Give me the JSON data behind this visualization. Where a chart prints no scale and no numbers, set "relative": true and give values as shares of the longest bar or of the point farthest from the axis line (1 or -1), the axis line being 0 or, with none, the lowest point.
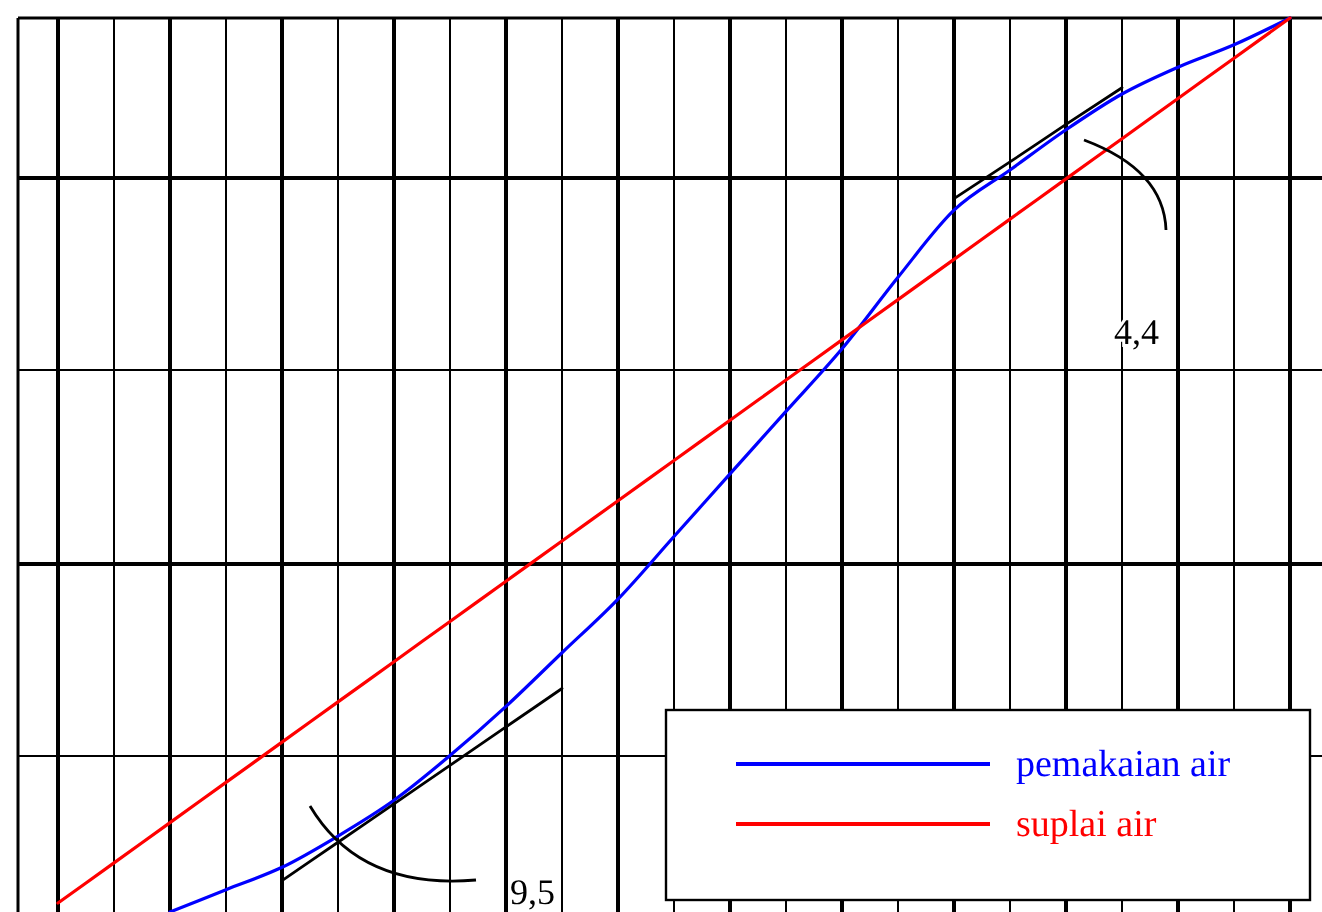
{
  "chart_data": {
    "type": "line",
    "relative": true,
    "categories": [
      null,
      null,
      null,
      null,
      null,
      null,
      null,
      null,
      null,
      null,
      null,
      null,
      null,
      null,
      null,
      null,
      null,
      null,
      null,
      null,
      null,
      null,
      null
    ],
    "series": [
      {
        "name": "pemakaian air",
        "color": "#0000ff",
        "values": [
          null,
          null,
          0,
          0.025,
          0.05,
          0.085,
          0.125,
          0.175,
          0.23,
          0.29,
          0.35,
          0.42,
          0.49,
          0.56,
          0.63,
          0.71,
          0.785,
          0.83,
          0.875,
          0.915,
          0.945,
          0.97,
          1.0
        ]
      },
      {
        "name": "suplai air",
        "color": "#ff0000",
        "values": [
          0.01,
          0.055,
          0.1,
          0.145,
          0.19,
          0.235,
          0.28,
          0.325,
          0.37,
          0.415,
          0.46,
          0.505,
          0.55,
          0.595,
          0.64,
          0.685,
          0.73,
          0.775,
          0.82,
          0.865,
          0.91,
          0.955,
          1.0
        ]
      },
      {
        "color": "#000000",
        "values": [
          null,
          null,
          null,
          null,
          0.035,
          0.078,
          0.121,
          0.164,
          0.207,
          0.25,
          null,
          null,
          null,
          null,
          null,
          null,
          null,
          null,
          null,
          null,
          null,
          null,
          null
        ]
      },
      {
        "color": "#000000",
        "values": [
          null,
          null,
          null,
          null,
          null,
          null,
          null,
          null,
          null,
          null,
          null,
          null,
          null,
          null,
          null,
          null,
          0.798,
          0.839,
          0.881,
          0.922,
          null,
          null,
          null
        ]
      }
    ],
    "annotations": [
      "4,4",
      "9,5"
    ],
    "grid": true,
    "legend": "bottom right"
  }
}
